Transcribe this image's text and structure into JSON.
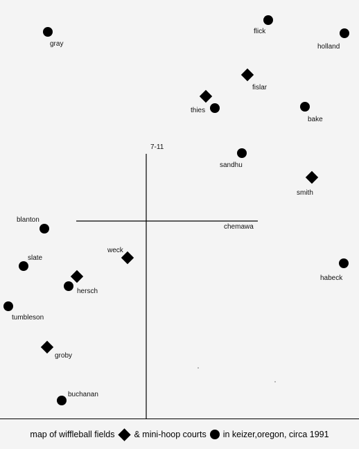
{
  "colors": {
    "background": "#f4f4f4",
    "ink": "#000000"
  },
  "roads": {
    "north_south": {
      "label": "7-11"
    },
    "east_west": {
      "label": "chemawa"
    }
  },
  "wiffleball_fields": [
    {
      "label": "fislar"
    },
    {
      "label": "thies"
    },
    {
      "label": "smith"
    },
    {
      "label": "weck"
    },
    {
      "label": "hersch"
    },
    {
      "label": "groby"
    }
  ],
  "mini_hoop_courts": [
    {
      "label": "gray"
    },
    {
      "label": "flick"
    },
    {
      "label": "holland"
    },
    {
      "label": "thies"
    },
    {
      "label": "bake"
    },
    {
      "label": "sandhu"
    },
    {
      "label": "blanton"
    },
    {
      "label": "slate"
    },
    {
      "label": "hersch"
    },
    {
      "label": "tumbleson"
    },
    {
      "label": "buchanan"
    },
    {
      "label": "habeck"
    }
  ],
  "caption": {
    "part1": "map of wiffleball fields",
    "diamond_icon": "diamond-icon",
    "part2": "& mini-hoop courts",
    "circle_icon": "circle-icon",
    "part3": "in keizer,oregon, circa 1991"
  }
}
